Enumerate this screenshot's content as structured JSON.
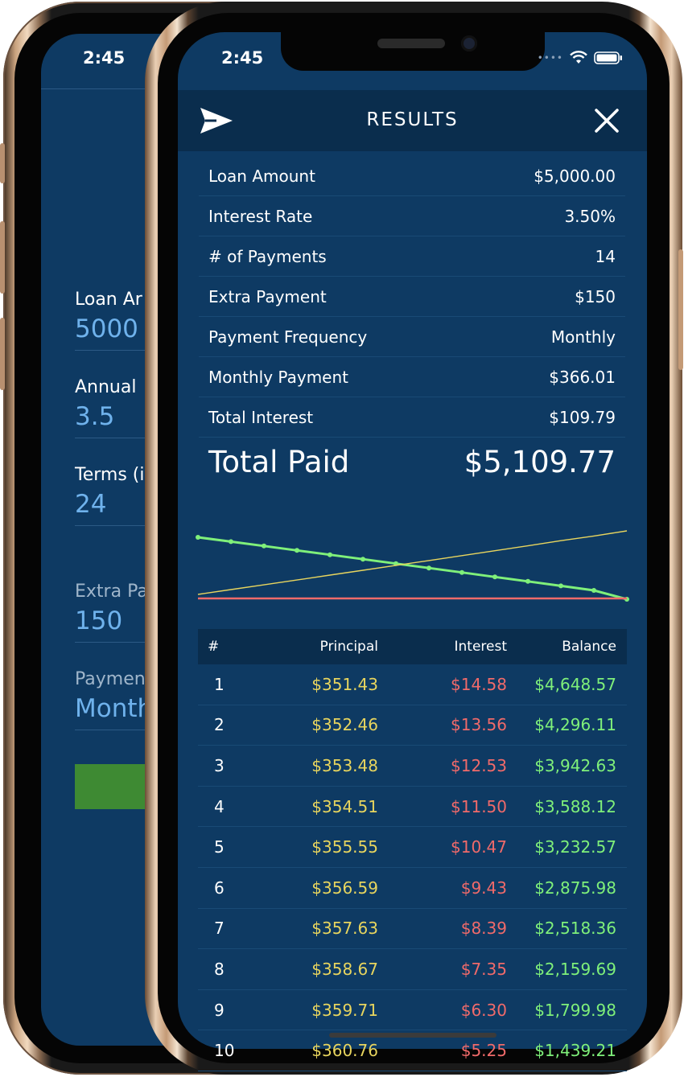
{
  "back_phone": {
    "status_time": "2:45",
    "fields": [
      {
        "label": "Loan Ar",
        "value": "5000",
        "dim": false
      },
      {
        "label": "Annual",
        "value": "3.5",
        "dim": false
      },
      {
        "label": "Terms (i",
        "value": "24",
        "dim": false
      },
      {
        "label": "Extra Pa",
        "value": "150",
        "dim": true
      },
      {
        "label": "Paymen",
        "value": "Month",
        "dim": true
      }
    ]
  },
  "status": {
    "time": "2:45"
  },
  "header": {
    "title": "RESULTS",
    "send_icon": "paper-plane-icon",
    "close_icon": "close-icon"
  },
  "summary": [
    {
      "label": "Loan Amount",
      "value": "$5,000.00"
    },
    {
      "label": "Interest Rate",
      "value": "3.50%"
    },
    {
      "label": "# of Payments",
      "value": "14"
    },
    {
      "label": "Extra Payment",
      "value": "$150"
    },
    {
      "label": "Payment Frequency",
      "value": "Monthly"
    },
    {
      "label": "Monthly Payment",
      "value": "$366.01"
    },
    {
      "label": "Total Interest",
      "value": "$109.79"
    }
  ],
  "total": {
    "label": "Total Paid",
    "value": "$5,109.77"
  },
  "colors": {
    "background": "#0e3a63",
    "header": "#0a2d4d",
    "principal": "#e8d55e",
    "interest": "#f06a6a",
    "balance": "#7ff07a"
  },
  "chart_data": {
    "type": "line",
    "x": [
      0,
      1,
      2,
      3,
      4,
      5,
      6,
      7,
      8,
      9,
      10,
      11,
      12,
      13
    ],
    "series": [
      {
        "values": [
          5000,
          4648.57,
          4296.11,
          3942.63,
          3588.12,
          3232.57,
          2875.98,
          2518.36,
          2159.69,
          1799.98,
          1439.21,
          1077.4,
          714.5,
          0
        ],
        "color": "#7ff07a",
        "markers": true
      },
      {
        "values": [
          351.43,
          352.46,
          353.48,
          354.51,
          355.55,
          356.59,
          357.63,
          358.67,
          359.71,
          360.76,
          361.81,
          362.9,
          363.9,
          365
        ],
        "color": "#e8d55e",
        "markers": false
      },
      {
        "values": [
          14.58,
          13.56,
          12.53,
          11.5,
          10.47,
          9.43,
          8.39,
          7.35,
          6.3,
          5.25,
          4.2,
          3.15,
          2.1,
          1.05
        ],
        "color": "#f06a6a",
        "markers": false
      }
    ]
  },
  "table": {
    "headers": {
      "num": "#",
      "principal": "Principal",
      "interest": "Interest",
      "balance": "Balance"
    },
    "rows": [
      {
        "num": "1",
        "principal": "$351.43",
        "interest": "$14.58",
        "balance": "$4,648.57"
      },
      {
        "num": "2",
        "principal": "$352.46",
        "interest": "$13.56",
        "balance": "$4,296.11"
      },
      {
        "num": "3",
        "principal": "$353.48",
        "interest": "$12.53",
        "balance": "$3,942.63"
      },
      {
        "num": "4",
        "principal": "$354.51",
        "interest": "$11.50",
        "balance": "$3,588.12"
      },
      {
        "num": "5",
        "principal": "$355.55",
        "interest": "$10.47",
        "balance": "$3,232.57"
      },
      {
        "num": "6",
        "principal": "$356.59",
        "interest": "$9.43",
        "balance": "$2,875.98"
      },
      {
        "num": "7",
        "principal": "$357.63",
        "interest": "$8.39",
        "balance": "$2,518.36"
      },
      {
        "num": "8",
        "principal": "$358.67",
        "interest": "$7.35",
        "balance": "$2,159.69"
      },
      {
        "num": "9",
        "principal": "$359.71",
        "interest": "$6.30",
        "balance": "$1,799.98"
      },
      {
        "num": "10",
        "principal": "$360.76",
        "interest": "$5.25",
        "balance": "$1,439.21"
      }
    ]
  }
}
